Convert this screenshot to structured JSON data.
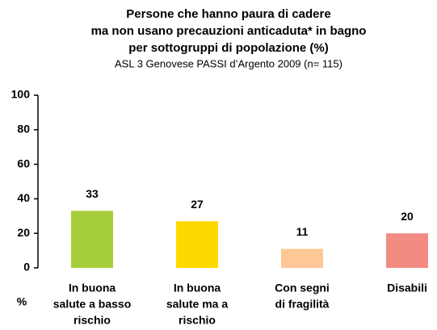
{
  "chart_data": {
    "type": "bar",
    "title": [
      "Persone che hanno paura di cadere",
      "ma non usano precauzioni anticaduta* in bagno",
      "per sottogruppi di popolazione (%)"
    ],
    "subtitle": "ASL 3 Genovese PASSI d’Argento 2009  (n= 115)",
    "y_label": "%",
    "categories": [
      [
        "In buona",
        "salute a basso",
        "rischio"
      ],
      [
        "In buona",
        "salute ma a",
        "rischio"
      ],
      [
        "Con segni",
        "di fragilità"
      ],
      [
        "Disabili"
      ]
    ],
    "values": [
      33,
      27,
      11,
      20
    ],
    "colors": [
      "#a6cd3a",
      "#ffd800",
      "#fdc896",
      "#f28b82"
    ],
    "ylim": [
      0,
      100
    ],
    "yticks": [
      0,
      20,
      40,
      60,
      80,
      100
    ]
  }
}
